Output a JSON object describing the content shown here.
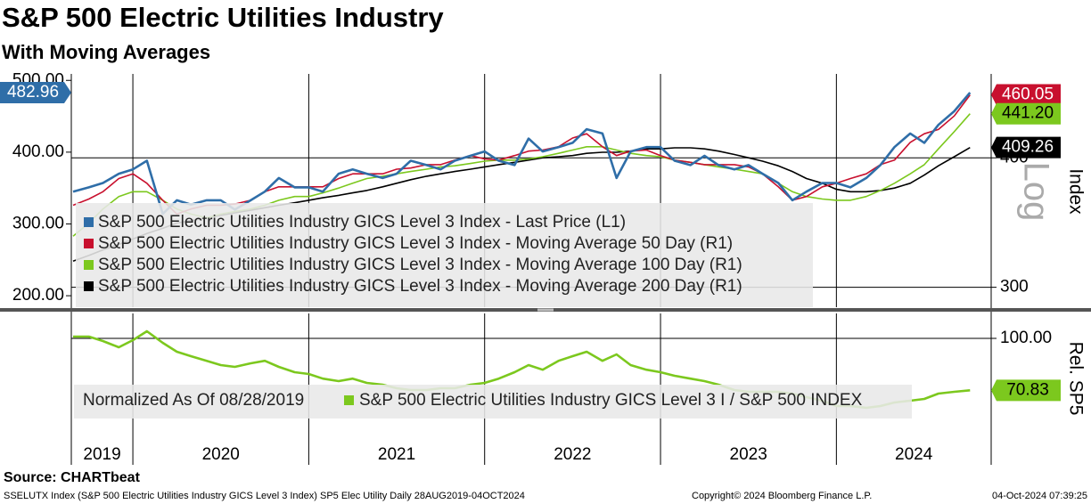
{
  "chart_data": [
    {
      "type": "line",
      "title": "S&P 500 Electric Utilities Industry",
      "subtitle": "With Moving Averages",
      "x": [
        2019.66,
        2019.75,
        2019.83,
        2019.92,
        2020.0,
        2020.08,
        2020.17,
        2020.25,
        2020.33,
        2020.42,
        2020.5,
        2020.58,
        2020.67,
        2020.75,
        2020.83,
        2020.92,
        2021.0,
        2021.08,
        2021.17,
        2021.25,
        2021.33,
        2021.42,
        2021.5,
        2021.58,
        2021.67,
        2021.75,
        2021.83,
        2021.92,
        2022.0,
        2022.08,
        2022.17,
        2022.25,
        2022.33,
        2022.42,
        2022.5,
        2022.58,
        2022.67,
        2022.75,
        2022.83,
        2022.92,
        2023.0,
        2023.08,
        2023.17,
        2023.25,
        2023.33,
        2023.42,
        2023.5,
        2023.58,
        2023.67,
        2023.75,
        2023.83,
        2023.92,
        2024.0,
        2024.08,
        2024.17,
        2024.25,
        2024.33,
        2024.42,
        2024.5,
        2024.58,
        2024.67,
        2024.76
      ],
      "xlim": [
        2019.65,
        2024.88
      ],
      "xticks": [
        2019,
        2020,
        2021,
        2022,
        2023,
        2024
      ],
      "ylim": [
        184,
        509
      ],
      "yticks": [
        {
          "value": 200,
          "label": "200.00"
        },
        {
          "value": 300,
          "label": "300.00"
        },
        {
          "value": 400,
          "label": "400.00"
        },
        {
          "value": 500,
          "label": "500.00"
        }
      ],
      "y2lim": [
        287,
        482
      ],
      "y2ticks": [
        300,
        400
      ],
      "y2scale": "log",
      "y2label": "Index",
      "y2scale_label": "Log",
      "series": [
        {
          "name": "S&P 500 Electric Utilities Industry GICS Level 3 Index - Last Price (L1)",
          "color": "#2f6ea8",
          "axis": "y",
          "values": [
            345,
            351,
            357,
            370,
            376,
            388,
            314,
            333,
            327,
            333,
            333,
            320,
            333,
            345,
            364,
            351,
            351,
            345,
            370,
            376,
            370,
            364,
            370,
            388,
            382,
            376,
            388,
            395,
            401,
            388,
            382,
            419,
            401,
            407,
            413,
            432,
            426,
            364,
            401,
            407,
            407,
            388,
            382,
            395,
            382,
            376,
            382,
            370,
            357,
            333,
            345,
            357,
            357,
            351,
            364,
            382,
            407,
            426,
            413,
            438,
            457,
            482.96
          ]
        },
        {
          "name": "S&P 500 Electric Utilities Industry GICS Level 3 Index - Moving Average 50 Day (R1)",
          "color": "#c8102e",
          "axis": "y2",
          "values": [
            360,
            365,
            371,
            382,
            386,
            378,
            364,
            353,
            357,
            360,
            360,
            361,
            364,
            371,
            375,
            375,
            375,
            375,
            382,
            386,
            386,
            386,
            390,
            391,
            394,
            394,
            398,
            402,
            399,
            398,
            402,
            406,
            407,
            410,
            418,
            422,
            410,
            402,
            406,
            407,
            402,
            398,
            396,
            394,
            394,
            394,
            392,
            386,
            375,
            364,
            367,
            375,
            378,
            382,
            386,
            394,
            398,
            414,
            422,
            426,
            439,
            460.05
          ]
        },
        {
          "name": "S&P 500 Electric Utilities Industry GICS Level 3 Index - Moving Average 100 Day (R1)",
          "color": "#7cc81e",
          "axis": "y2",
          "values": [
            336,
            346,
            357,
            367,
            371,
            371,
            364,
            357,
            353,
            350,
            353,
            355,
            357,
            360,
            364,
            367,
            367,
            370,
            374,
            378,
            382,
            384,
            386,
            388,
            390,
            392,
            393,
            395,
            397,
            398,
            398,
            399,
            401,
            404,
            407,
            410,
            410,
            407,
            404,
            402,
            401,
            398,
            396,
            394,
            392,
            390,
            388,
            386,
            378,
            371,
            367,
            365,
            364,
            364,
            367,
            372,
            378,
            386,
            394,
            408,
            424,
            441.2
          ],
          "value_labels": [
            null,
            null,
            null,
            null,
            null,
            null,
            null,
            null,
            null,
            null,
            null,
            null,
            null,
            null,
            null,
            null,
            null,
            null,
            null,
            null,
            null,
            null,
            null,
            null,
            null,
            null,
            null,
            null,
            null,
            null,
            null,
            null,
            null,
            null,
            null,
            null,
            null,
            null,
            null,
            null,
            null,
            null,
            null,
            null,
            null,
            null,
            null,
            null,
            null,
            null,
            null,
            null,
            null,
            null,
            null,
            null,
            null,
            null,
            null,
            null,
            null,
            "441.20"
          ]
        },
        {
          "name": "S&P 500 Electric Utilities Industry GICS Level 3 Index - Moving Average 200 Day (R1)",
          "color": "#000000",
          "axis": "y2",
          "values": [
            318,
            322,
            326,
            330,
            334,
            338,
            342,
            346,
            348,
            350,
            352,
            354,
            356,
            358,
            360,
            362,
            364,
            366,
            368,
            370,
            372,
            375,
            378,
            381,
            384,
            386,
            388,
            390,
            392,
            394,
            396,
            398,
            400,
            401,
            402,
            404,
            405,
            405,
            406,
            408,
            408,
            409,
            409,
            408,
            406,
            403,
            400,
            397,
            393,
            388,
            382,
            378,
            373,
            371,
            371,
            372,
            374,
            378,
            385,
            393,
            401,
            409.26
          ]
        }
      ]
    },
    {
      "type": "line",
      "annotation": "Normalized As Of 08/28/2019",
      "y2label": "Rel. SP5",
      "x": [
        2019.66,
        2019.75,
        2019.83,
        2019.92,
        2020.0,
        2020.08,
        2020.17,
        2020.25,
        2020.33,
        2020.42,
        2020.5,
        2020.58,
        2020.67,
        2020.75,
        2020.83,
        2020.92,
        2021.0,
        2021.08,
        2021.17,
        2021.25,
        2021.33,
        2021.42,
        2021.5,
        2021.58,
        2021.67,
        2021.75,
        2021.83,
        2021.92,
        2022.0,
        2022.08,
        2022.17,
        2022.25,
        2022.33,
        2022.42,
        2022.5,
        2022.58,
        2022.67,
        2022.75,
        2022.83,
        2022.92,
        2023.0,
        2023.08,
        2023.17,
        2023.25,
        2023.33,
        2023.42,
        2023.5,
        2023.58,
        2023.67,
        2023.75,
        2023.83,
        2023.92,
        2024.0,
        2024.08,
        2024.17,
        2024.25,
        2024.33,
        2024.42,
        2024.5,
        2024.58,
        2024.67,
        2024.76
      ],
      "xlim": [
        2019.65,
        2024.88
      ],
      "xticks": [
        2019,
        2020,
        2021,
        2022,
        2023,
        2024
      ],
      "y2lim": [
        45,
        114
      ],
      "y2ticks": [
        {
          "value": 100,
          "label": "100.00"
        }
      ],
      "series": [
        {
          "name": "S&P 500 Electric Utilities Industry GICS Level 3 I / S&P 500 INDEX",
          "color": "#7cc81e",
          "axis": "y2",
          "values": [
            101,
            101,
            98.5,
            95,
            99,
            104,
            97.5,
            92.5,
            90,
            87.4,
            85,
            84,
            86,
            87.4,
            84,
            81,
            80,
            77.4,
            76,
            77.4,
            75,
            74,
            72,
            71,
            71,
            72,
            72,
            74,
            75,
            77.4,
            81,
            85,
            82.4,
            87.4,
            90,
            92.5,
            87.4,
            91,
            85,
            82.4,
            81,
            79,
            77.4,
            76,
            74,
            71,
            70,
            70,
            70,
            69,
            67,
            65,
            62,
            62,
            61,
            62,
            64,
            65,
            66,
            69,
            70,
            70.83
          ]
        }
      ]
    }
  ],
  "source": "Source: CHARTbeat",
  "footer": {
    "left": "SSELUTX Index (S&P 500 Electric Utilities Industry GICS Level 3 Index) SP5 Elec Utility  Daily 28AUG2019-04OCT2024",
    "center": "Copyright© 2024 Bloomberg Finance L.P.",
    "right": "04-Oct-2024 07:39:25"
  }
}
